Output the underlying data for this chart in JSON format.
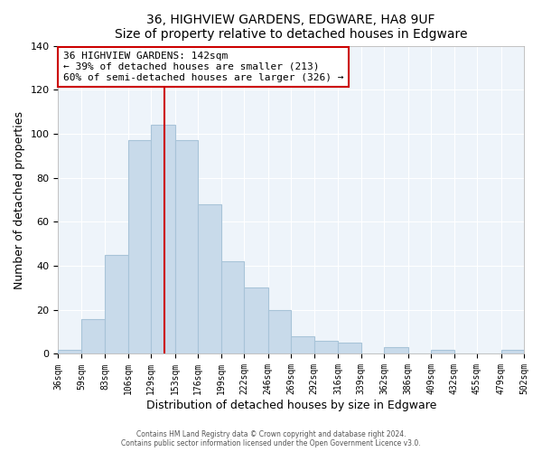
{
  "title": "36, HIGHVIEW GARDENS, EDGWARE, HA8 9UF",
  "subtitle": "Size of property relative to detached houses in Edgware",
  "xlabel": "Distribution of detached houses by size in Edgware",
  "ylabel": "Number of detached properties",
  "bar_color": "#c8daea",
  "bar_edge_color": "#a8c4d8",
  "vline_x": 142,
  "vline_color": "#cc0000",
  "bins": [
    36,
    59,
    83,
    106,
    129,
    153,
    176,
    199,
    222,
    246,
    269,
    292,
    316,
    339,
    362,
    386,
    409,
    432,
    455,
    479,
    502
  ],
  "counts": [
    2,
    16,
    45,
    97,
    104,
    97,
    68,
    42,
    30,
    20,
    8,
    6,
    5,
    0,
    3,
    0,
    2,
    0,
    0,
    2
  ],
  "tick_labels": [
    "36sqm",
    "59sqm",
    "83sqm",
    "106sqm",
    "129sqm",
    "153sqm",
    "176sqm",
    "199sqm",
    "222sqm",
    "246sqm",
    "269sqm",
    "292sqm",
    "316sqm",
    "339sqm",
    "362sqm",
    "386sqm",
    "409sqm",
    "432sqm",
    "455sqm",
    "479sqm",
    "502sqm"
  ],
  "annotation_title": "36 HIGHVIEW GARDENS: 142sqm",
  "annotation_line1": "← 39% of detached houses are smaller (213)",
  "annotation_line2": "60% of semi-detached houses are larger (326) →",
  "box_facecolor": "#ffffff",
  "box_edgecolor": "#cc0000",
  "ylim": [
    0,
    140
  ],
  "yticks": [
    0,
    20,
    40,
    60,
    80,
    100,
    120,
    140
  ],
  "axes_bg": "#eef4fa",
  "grid_color": "#ffffff",
  "footer1": "Contains HM Land Registry data © Crown copyright and database right 2024.",
  "footer2": "Contains public sector information licensed under the Open Government Licence v3.0."
}
